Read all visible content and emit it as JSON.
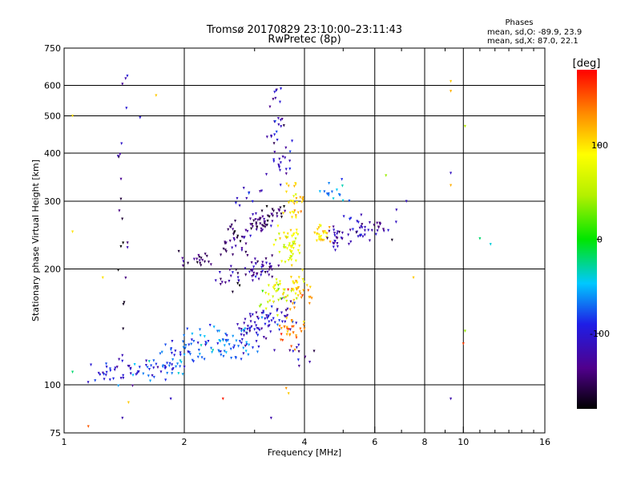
{
  "chart_data": {
    "type": "scatter",
    "title": "Tromsø 20170829 23:10:00–23:11:43",
    "subtitle": "RwPretec (8p)",
    "xlabel": "Frequency [MHz]",
    "ylabel": "Stationary phase Virtual Height [km]",
    "x_scale": "log",
    "y_scale": "log",
    "xlim": [
      1,
      16
    ],
    "ylim": [
      75,
      750
    ],
    "x_ticks": [
      1,
      2,
      4,
      6,
      8,
      10,
      16
    ],
    "x_tick_labels": [
      "1",
      "2",
      "4",
      "6",
      "8",
      "10",
      "16"
    ],
    "x_minor_ticks": [
      3,
      5,
      7,
      9,
      11,
      12,
      13,
      14,
      15
    ],
    "y_ticks": [
      75,
      100,
      200,
      300,
      400,
      500,
      600,
      750
    ],
    "y_tick_labels": [
      "75",
      "100",
      "200",
      "300",
      "400",
      "500",
      "600",
      "750"
    ],
    "grid": true,
    "phases": {
      "label": "Phases",
      "line_o": "mean, sd,O: -89.9, 23.9",
      "line_x": "mean, sd,X:  87.0, 22.1"
    },
    "colorbar": {
      "label": "[deg]",
      "range": [
        -180,
        180
      ],
      "ticks": [
        -100,
        0,
        100
      ],
      "tick_labels": [
        "-100",
        "0",
        "100"
      ]
    },
    "clusters": [
      {
        "f": 1.3,
        "h": 106,
        "phase": -95,
        "n": 18,
        "sf": 0.06,
        "sh": 0.04
      },
      {
        "f": 1.5,
        "h": 108,
        "phase": -110,
        "n": 26,
        "sf": 0.07,
        "sh": 0.04
      },
      {
        "f": 1.7,
        "h": 110,
        "phase": -85,
        "n": 18,
        "sf": 0.06,
        "sh": 0.04
      },
      {
        "f": 1.9,
        "h": 116,
        "phase": -75,
        "n": 28,
        "sf": 0.06,
        "sh": 0.05
      },
      {
        "f": 2.1,
        "h": 128,
        "phase": -80,
        "n": 28,
        "sf": 0.06,
        "sh": 0.05
      },
      {
        "f": 2.6,
        "h": 128,
        "phase": -70,
        "n": 55,
        "sf": 0.07,
        "sh": 0.05
      },
      {
        "f": 3.0,
        "h": 140,
        "phase": -110,
        "n": 45,
        "sf": 0.06,
        "sh": 0.05
      },
      {
        "f": 3.4,
        "h": 150,
        "phase": -100,
        "n": 35,
        "sf": 0.05,
        "sh": 0.05
      },
      {
        "f": 3.7,
        "h": 138,
        "phase": 130,
        "n": 30,
        "sf": 0.04,
        "sh": 0.04
      },
      {
        "f": 3.4,
        "h": 170,
        "phase": 60,
        "n": 30,
        "sf": 0.05,
        "sh": 0.05
      },
      {
        "f": 3.8,
        "h": 180,
        "phase": 95,
        "n": 25,
        "sf": 0.04,
        "sh": 0.04
      },
      {
        "f": 4.0,
        "h": 165,
        "phase": 135,
        "n": 18,
        "sf": 0.04,
        "sh": 0.04
      },
      {
        "f": 3.1,
        "h": 200,
        "phase": -125,
        "n": 40,
        "sf": 0.05,
        "sh": 0.04
      },
      {
        "f": 2.6,
        "h": 190,
        "phase": -140,
        "n": 22,
        "sf": 0.06,
        "sh": 0.04
      },
      {
        "f": 2.2,
        "h": 210,
        "phase": -145,
        "n": 20,
        "sf": 0.05,
        "sh": 0.03
      },
      {
        "f": 2.7,
        "h": 240,
        "phase": -140,
        "n": 35,
        "sf": 0.05,
        "sh": 0.05
      },
      {
        "f": 3.1,
        "h": 265,
        "phase": -145,
        "n": 35,
        "sf": 0.04,
        "sh": 0.04
      },
      {
        "f": 3.4,
        "h": 280,
        "phase": -155,
        "n": 18,
        "sf": 0.04,
        "sh": 0.03
      },
      {
        "f": 3.7,
        "h": 230,
        "phase": 80,
        "n": 50,
        "sf": 0.04,
        "sh": 0.06
      },
      {
        "f": 3.8,
        "h": 300,
        "phase": 100,
        "n": 30,
        "sf": 0.03,
        "sh": 0.05
      },
      {
        "f": 4.4,
        "h": 248,
        "phase": 105,
        "n": 25,
        "sf": 0.03,
        "sh": 0.03
      },
      {
        "f": 4.9,
        "h": 240,
        "phase": -120,
        "n": 25,
        "sf": 0.04,
        "sh": 0.04
      },
      {
        "f": 5.5,
        "h": 255,
        "phase": -110,
        "n": 25,
        "sf": 0.04,
        "sh": 0.04
      },
      {
        "f": 6.2,
        "h": 260,
        "phase": -130,
        "n": 15,
        "sf": 0.04,
        "sh": 0.04
      },
      {
        "f": 4.8,
        "h": 310,
        "phase": -60,
        "n": 15,
        "sf": 0.05,
        "sh": 0.04
      },
      {
        "f": 3.5,
        "h": 380,
        "phase": -110,
        "n": 20,
        "sf": 0.04,
        "sh": 0.06
      },
      {
        "f": 3.4,
        "h": 470,
        "phase": -120,
        "n": 15,
        "sf": 0.03,
        "sh": 0.06
      },
      {
        "f": 3.4,
        "h": 600,
        "phase": -110,
        "n": 8,
        "sf": 0.03,
        "sh": 0.05
      },
      {
        "f": 2.9,
        "h": 310,
        "phase": -100,
        "n": 10,
        "sf": 0.04,
        "sh": 0.04
      },
      {
        "f": 3.9,
        "h": 120,
        "phase": -120,
        "n": 10,
        "sf": 0.03,
        "sh": 0.04
      },
      {
        "f": 1.4,
        "h": 240,
        "phase": -150,
        "n": 12,
        "sf": 0.02,
        "sh": 0.3
      },
      {
        "f": 1.4,
        "h": 430,
        "phase": -110,
        "n": 8,
        "sf": 0.02,
        "sh": 0.3
      }
    ],
    "scatter_points": [
      {
        "f": 9.3,
        "h": 615,
        "phase": 110
      },
      {
        "f": 9.3,
        "h": 580,
        "phase": 120
      },
      {
        "f": 9.3,
        "h": 355,
        "phase": -110
      },
      {
        "f": 9.3,
        "h": 330,
        "phase": 120
      },
      {
        "f": 9.3,
        "h": 92,
        "phase": -120
      },
      {
        "f": 10.1,
        "h": 470,
        "phase": 50
      },
      {
        "f": 10.1,
        "h": 138,
        "phase": 40
      },
      {
        "f": 10.0,
        "h": 128,
        "phase": 160
      },
      {
        "f": 11.0,
        "h": 240,
        "phase": -20
      },
      {
        "f": 11.7,
        "h": 232,
        "phase": -40
      },
      {
        "f": 7.2,
        "h": 300,
        "phase": -110
      },
      {
        "f": 6.8,
        "h": 285,
        "phase": -115
      },
      {
        "f": 6.4,
        "h": 350,
        "phase": 40
      },
      {
        "f": 7.5,
        "h": 190,
        "phase": 110
      },
      {
        "f": 1.05,
        "h": 500,
        "phase": 100
      },
      {
        "f": 1.05,
        "h": 250,
        "phase": 100
      },
      {
        "f": 1.05,
        "h": 108,
        "phase": -20
      },
      {
        "f": 1.15,
        "h": 78,
        "phase": 150
      },
      {
        "f": 1.25,
        "h": 190,
        "phase": 100
      },
      {
        "f": 1.4,
        "h": 82,
        "phase": -120
      },
      {
        "f": 1.45,
        "h": 90,
        "phase": 110
      },
      {
        "f": 1.4,
        "h": 605,
        "phase": -130
      },
      {
        "f": 1.55,
        "h": 495,
        "phase": -100
      },
      {
        "f": 1.7,
        "h": 565,
        "phase": 110
      },
      {
        "f": 1.85,
        "h": 92,
        "phase": -110
      },
      {
        "f": 2.5,
        "h": 92,
        "phase": 170
      },
      {
        "f": 3.3,
        "h": 82,
        "phase": -120
      },
      {
        "f": 3.6,
        "h": 98,
        "phase": 130
      },
      {
        "f": 3.65,
        "h": 95,
        "phase": 110
      }
    ]
  }
}
